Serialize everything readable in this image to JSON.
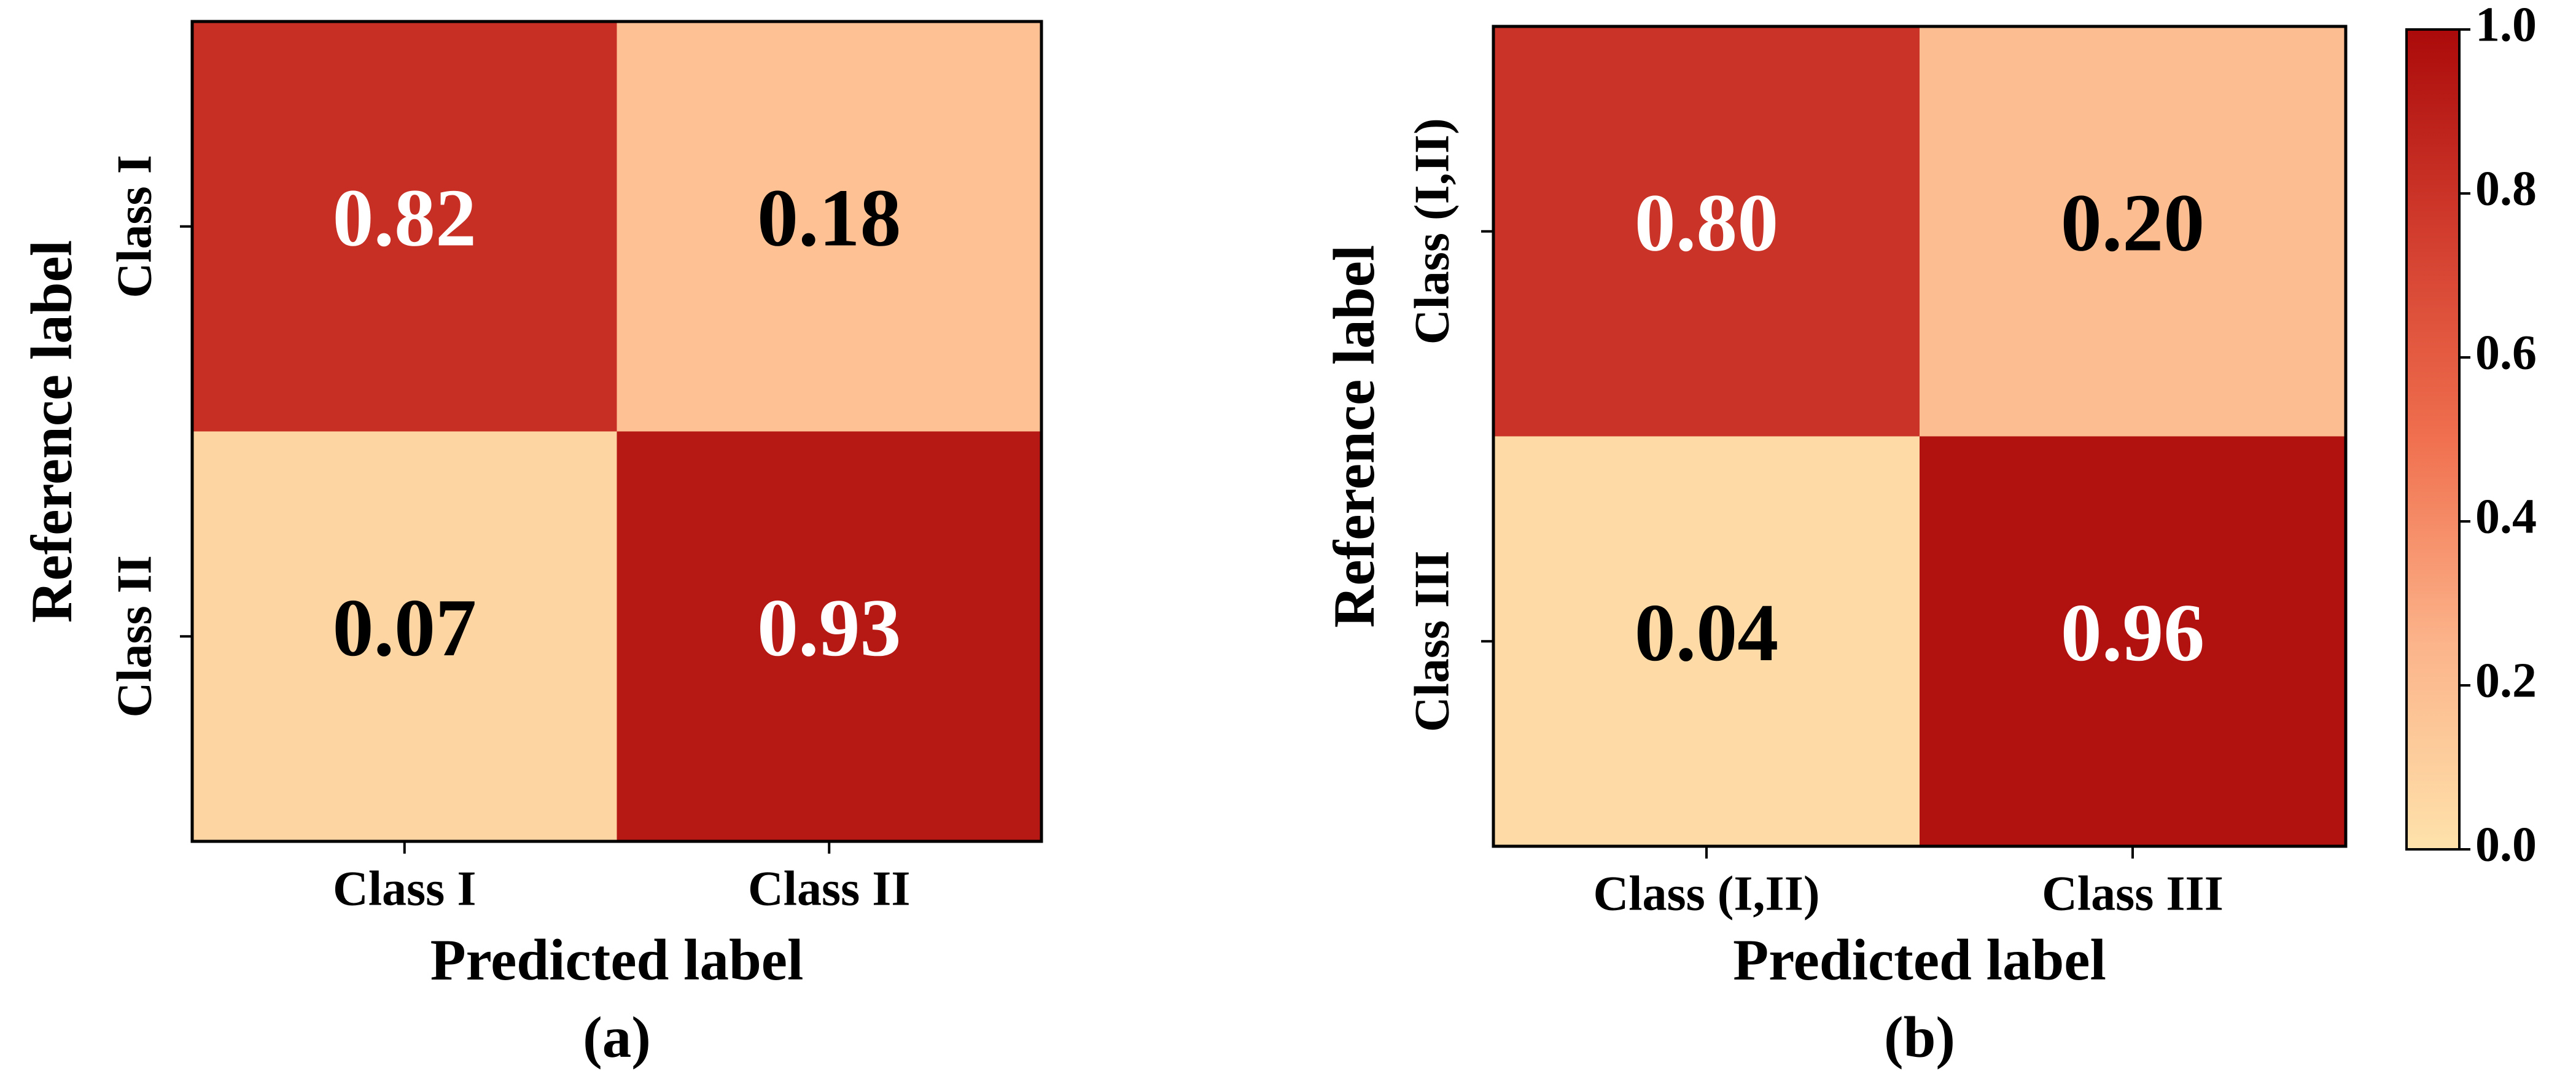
{
  "chart_data": [
    {
      "type": "heatmap",
      "x_categories": [
        "Class I",
        "Class II"
      ],
      "y_categories": [
        "Class I",
        "Class II"
      ],
      "values": [
        [
          0.82,
          0.18
        ],
        [
          0.07,
          0.93
        ]
      ],
      "x_label": "Predicted label",
      "y_label": "Reference label",
      "caption": "(a)",
      "colormap": [
        "#fee2ab",
        "#fcb48a",
        "#f0704f",
        "#d23d2e",
        "#ab0a0a"
      ]
    },
    {
      "type": "heatmap",
      "x_categories": [
        "Class (I,II)",
        "Class III"
      ],
      "y_categories": [
        "Class (I,II)",
        "Class III"
      ],
      "values": [
        [
          0.8,
          0.2
        ],
        [
          0.04,
          0.96
        ]
      ],
      "value_labels": [
        [
          "0.80",
          "0.20"
        ],
        [
          "0.04",
          "0.96"
        ]
      ],
      "x_label": "Predicted label",
      "y_label": "Reference label",
      "caption": "(b)",
      "colormap": [
        "#fee2ab",
        "#fcb48a",
        "#f0704f",
        "#d23d2e",
        "#ab0a0a"
      ],
      "colorbar": {
        "lim": [
          0,
          1
        ],
        "ticks": [
          {
            "value": 0,
            "label": "0.0"
          },
          0.2,
          0.4,
          0.6,
          0.8,
          {
            "value": 1,
            "label": "1.0"
          }
        ]
      }
    }
  ]
}
